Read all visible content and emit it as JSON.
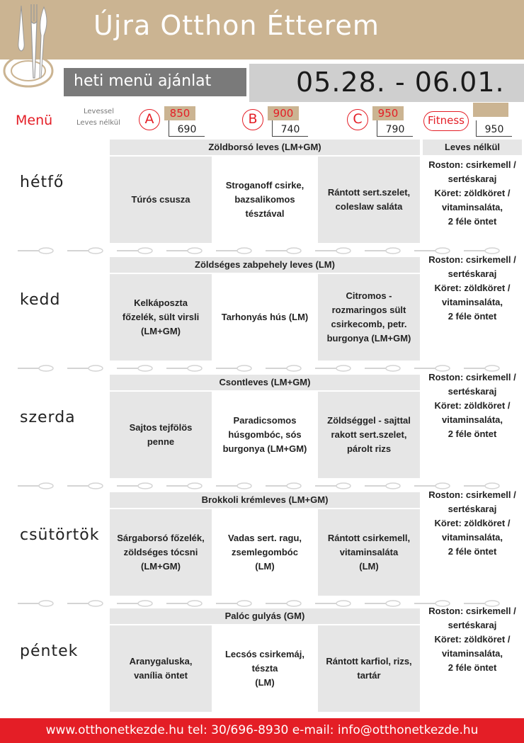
{
  "header": {
    "title": "Újra Otthon Étterem",
    "subtitle": "heti menü ajánlat",
    "date_range": "05.28. - 06.01."
  },
  "prices": {
    "menu_label": "Menü",
    "with_soup_label": "Levessel",
    "without_soup_label": "Leves nélkül",
    "options": [
      {
        "letter": "A",
        "with_soup": "850",
        "without_soup": "690"
      },
      {
        "letter": "B",
        "with_soup": "900",
        "without_soup": "740"
      },
      {
        "letter": "C",
        "with_soup": "950",
        "without_soup": "790"
      }
    ],
    "fitness": {
      "label": "Fitness",
      "price": "950"
    }
  },
  "fitness_header": "Leves nélkül",
  "fitness_text": "Roston: csirkemell /\nsertéskaraj\nKöret: zöldköret /\nvitaminsaláta,\n2 féle öntet",
  "fitness_text_monday": "Roston: csirkemell /\nsertéskaraj\nKöret: zöldköret /\nvitaminsaláta,\n2 féle öntet",
  "days": [
    {
      "name": "hétfő",
      "soup": "Zöldborsó leves (LM+GM)",
      "a": "Túrós csusza",
      "b": "Stroganoff csirke,\nbazsalikomos\ntésztával",
      "c": "Rántott sert.szelet,\ncoleslaw saláta"
    },
    {
      "name": "kedd",
      "soup": "Zöldséges zabpehely leves (LM)",
      "a": "Kelkáposzta\nfőzelék, sült virsli\n(LM+GM)",
      "b": "Tarhonyás hús (LM)",
      "c": "Citromos -\nrozmaringos sült\ncsirkecomb, petr.\nburgonya (LM+GM)"
    },
    {
      "name": "szerda",
      "soup": "Csontleves (LM+GM)",
      "a": "Sajtos tejfölös\npenne",
      "b": "Paradicsomos\nhúsgombóc, sós\nburgonya (LM+GM)",
      "c": "Zöldséggel - sajttal\nrakott sert.szelet,\npárolt rizs"
    },
    {
      "name": "csütörtök",
      "soup": "Brokkoli krémleves (LM+GM)",
      "a": "Sárgaborsó főzelék,\nzöldséges tócsni\n(LM+GM)",
      "b": "Vadas sert. ragu,\nzsemlegombóc\n(LM)",
      "c": "Rántott csirkemell,\nvitaminsaláta\n(LM)"
    },
    {
      "name": "péntek",
      "soup": "Palóc gulyás (GM)",
      "a": "Aranygaluska,\nvanília öntet",
      "b": "Lecsós csirkemáj,\ntészta\n(LM)",
      "c": "Rántott karfiol, rizs,\ntartár"
    }
  ],
  "footer": {
    "text": "www.otthonetkezde.hu   tel: 30/696-8930   e-mail: info@otthonetkezde.hu"
  },
  "colors": {
    "accent": "#e41e26",
    "tan": "#cbb492",
    "grey": "#7a7a7a"
  }
}
